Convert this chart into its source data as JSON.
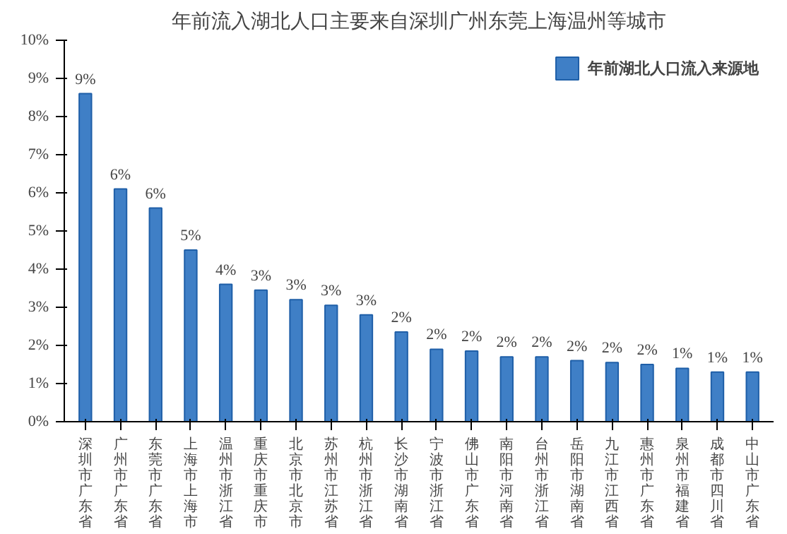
{
  "chart_data": {
    "type": "bar",
    "title": "年前流入湖北人口主要来自深圳广州东莞上海温州等城市",
    "categories": [
      "深圳市广东省",
      "广州市广东省",
      "东莞市广东省",
      "上海市上海市",
      "温州市浙江省",
      "重庆市重庆市",
      "北京市北京市",
      "苏州市江苏省",
      "杭州市浙江省",
      "长沙市湖南省",
      "宁波市浙江省",
      "佛山市广东省",
      "南阳市河南省",
      "台州市浙江省",
      "岳阳市湖南省",
      "九江市江西省",
      "惠州市广东省",
      "泉州市福建省",
      "成都市四川省",
      "中山市广东省"
    ],
    "series": [
      {
        "name": "年前湖北人口流入来源地",
        "color": "#3f7fc6",
        "values": [
          8.6,
          6.1,
          5.6,
          4.5,
          3.6,
          3.45,
          3.2,
          3.05,
          2.8,
          2.35,
          1.9,
          1.85,
          1.7,
          1.7,
          1.6,
          1.55,
          1.5,
          1.4,
          1.3,
          1.3
        ],
        "value_labels": [
          "9%",
          "6%",
          "6%",
          "5%",
          "4%",
          "3%",
          "3%",
          "3%",
          "3%",
          "2%",
          "2%",
          "2%",
          "2%",
          "2%",
          "2%",
          "2%",
          "2%",
          "1%",
          "1%",
          "1%"
        ]
      }
    ],
    "ylim": [
      0,
      10
    ],
    "yticks": [
      {
        "value": 0,
        "label": "0%"
      },
      {
        "value": 1,
        "label": "1%"
      },
      {
        "value": 2,
        "label": "2%"
      },
      {
        "value": 3,
        "label": "3%"
      },
      {
        "value": 4,
        "label": "4%"
      },
      {
        "value": 5,
        "label": "5%"
      },
      {
        "value": 6,
        "label": "6%"
      },
      {
        "value": 7,
        "label": "7%"
      },
      {
        "value": 8,
        "label": "8%"
      },
      {
        "value": 9,
        "label": "9%"
      },
      {
        "value": 10,
        "label": "10%"
      }
    ],
    "grid": false,
    "legend": "top right"
  }
}
